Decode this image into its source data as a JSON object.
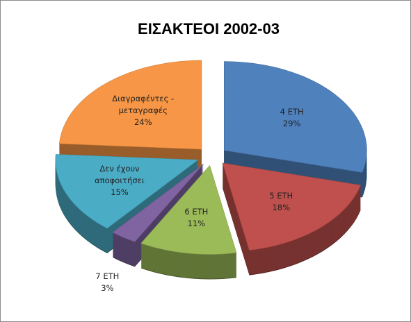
{
  "chart_data": {
    "type": "pie",
    "title": "ΕΙΣΑΚΤΕΟΙ 2002-03",
    "categories": [
      "4 ΕΤΗ",
      "5 ΕΤΗ",
      "6 ΕΤΗ",
      "7 ΕΤΗ",
      "Δεν έχουν αποφοιτήσει",
      "Διαγραφέντες - μεταγραφές"
    ],
    "values": [
      29,
      18,
      11,
      3,
      15,
      24
    ],
    "value_labels": [
      "29%",
      "18%",
      "11%",
      "3%",
      "15%",
      "24%"
    ],
    "colors": [
      "#4f81bd",
      "#c0504d",
      "#9bbb59",
      "#8064a2",
      "#4bacc6",
      "#f79646"
    ]
  }
}
